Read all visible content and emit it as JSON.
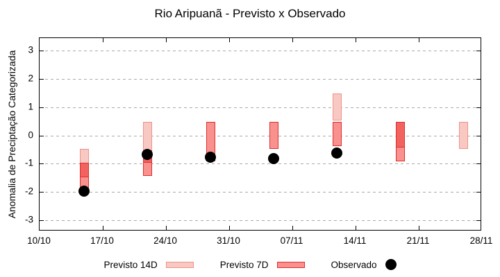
{
  "title": "Rio Aripuanã - Previsto x Observado",
  "legend": {
    "previsto_14d_label": "Previsto 14D",
    "previsto_7d_label": "Previsto 7D",
    "observado_label": "Observado"
  },
  "colors": {
    "previsto_14d_fill": "#f8c9c3",
    "previsto_14d_border": "#ef9189",
    "previsto_7d_fill": "#f9918e",
    "previsto_7d_border": "#dd2e2e",
    "overlap_fill": "#f2625f",
    "observado_dot": "#000000",
    "grid": "#a9a9a9",
    "axis_border": "#000000"
  },
  "chart_data": {
    "type": "bar",
    "title": "Rio Aripuanã - Previsto x Observado",
    "xlabel": "",
    "ylabel": "Anomalia de Preciptação Categorizada",
    "ylim": [
      -3.4,
      3.45
    ],
    "xlim_days": [
      0,
      49
    ],
    "grid": "horizontal-dotted",
    "legend_position": "bottom-center",
    "y_ticks": [
      3,
      2,
      1,
      0,
      -1,
      -2,
      -3
    ],
    "x_ticks": [
      {
        "label": "10/10",
        "day": 0
      },
      {
        "label": "17/10",
        "day": 7
      },
      {
        "label": "24/10",
        "day": 14
      },
      {
        "label": "31/10",
        "day": 21
      },
      {
        "label": "07/11",
        "day": 28
      },
      {
        "label": "14/11",
        "day": 35
      },
      {
        "label": "21/11",
        "day": 42
      },
      {
        "label": "28/11",
        "day": 49
      }
    ],
    "series_names": [
      "Previsto 14D",
      "Previsto 7D",
      "Observado"
    ],
    "clusters": [
      {
        "date": "15/10",
        "day": 5,
        "previsto_14d": [
          -0.5,
          -1.5
        ],
        "previsto_7d": [
          -1.0,
          -1.9
        ],
        "observado": -2.0
      },
      {
        "date": "22/10",
        "day": 12,
        "previsto_14d": [
          0.45,
          -1.0
        ],
        "previsto_7d": [
          -0.55,
          -1.45
        ],
        "observado": -0.7
      },
      {
        "date": "29/10",
        "day": 19,
        "previsto_14d": null,
        "previsto_7d": [
          0.45,
          -0.95
        ],
        "observado": -0.8
      },
      {
        "date": "05/11",
        "day": 26,
        "previsto_14d": null,
        "previsto_7d": [
          0.45,
          -0.5
        ],
        "observado": -0.85
      },
      {
        "date": "12/11",
        "day": 33,
        "previsto_14d": [
          1.45,
          0.5
        ],
        "previsto_7d": [
          0.45,
          -0.4
        ],
        "observado": -0.65
      },
      {
        "date": "19/11",
        "day": 40,
        "previsto_14d": [
          0.45,
          -0.45
        ],
        "previsto_7d": [
          0.45,
          -0.95
        ],
        "observado": null
      },
      {
        "date": "26/11",
        "day": 47,
        "previsto_14d": [
          0.45,
          -0.5
        ],
        "previsto_7d": null,
        "observado": null
      }
    ]
  }
}
